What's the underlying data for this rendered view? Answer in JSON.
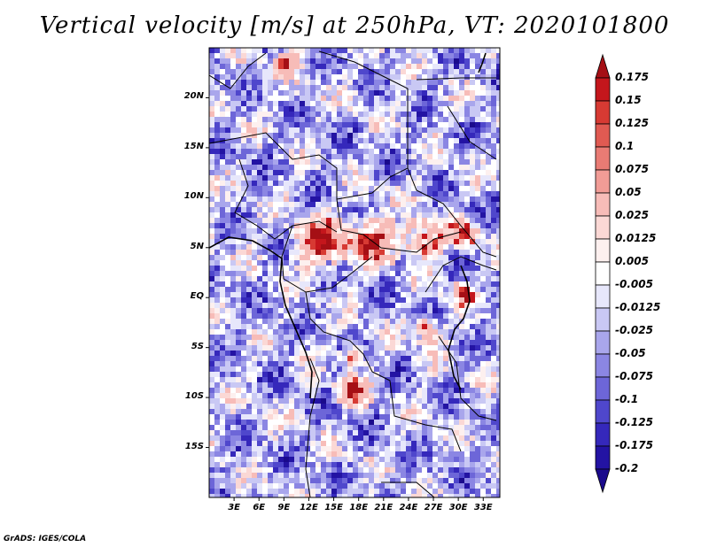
{
  "title": "Vertical velocity [m/s] at 250hPa, VT: 2020101800",
  "credit": "GrADS: IGES/COLA",
  "map": {
    "projection": "lat-lon",
    "lon_range": [
      0,
      35
    ],
    "lat_range": [
      -20,
      25
    ],
    "lat_ticks": [
      "20N",
      "15N",
      "10N",
      "5N",
      "EQ",
      "5S",
      "10S",
      "15S"
    ],
    "lon_ticks": [
      "3E",
      "6E",
      "9E",
      "12E",
      "15E",
      "18E",
      "21E",
      "24E",
      "27E",
      "30E",
      "33E"
    ]
  },
  "colorbar": {
    "labels": [
      "0.175",
      "0.15",
      "0.125",
      "0.1",
      "0.075",
      "0.05",
      "0.025",
      "0.0125",
      "0.005",
      "-0.005",
      "-0.0125",
      "-0.025",
      "-0.05",
      "-0.075",
      "-0.1",
      "-0.125",
      "-0.175",
      "-0.2"
    ],
    "colors": [
      "#a50f15",
      "#c4161c",
      "#d73a33",
      "#e05a52",
      "#e97b74",
      "#f19c96",
      "#f7bcb8",
      "#fbd8d5",
      "#fdf0ef",
      "#ffffff",
      "#e7e7fb",
      "#c9c8f4",
      "#a9a6ec",
      "#8b86e3",
      "#6d66d8",
      "#4f47cc",
      "#3528bb",
      "#2313a3",
      "#1a0a8c"
    ]
  },
  "chart_data": {
    "type": "heatmap",
    "title": "Vertical velocity [m/s] at 250hPa, VT: 2020101800",
    "variable": "Vertical velocity",
    "units": "m/s",
    "level": "250hPa",
    "valid_time": "2020101800",
    "levels": [
      -0.2,
      -0.175,
      -0.125,
      -0.1,
      -0.075,
      -0.05,
      -0.025,
      -0.0125,
      -0.005,
      0.005,
      0.0125,
      0.025,
      0.05,
      0.075,
      0.1,
      0.125,
      0.15,
      0.175
    ],
    "x_ticks": [
      "3E",
      "6E",
      "9E",
      "12E",
      "15E",
      "18E",
      "21E",
      "24E",
      "27E",
      "30E",
      "33E"
    ],
    "y_ticks": [
      "20N",
      "15N",
      "10N",
      "5N",
      "EQ",
      "5S",
      "10S",
      "15S"
    ]
  }
}
